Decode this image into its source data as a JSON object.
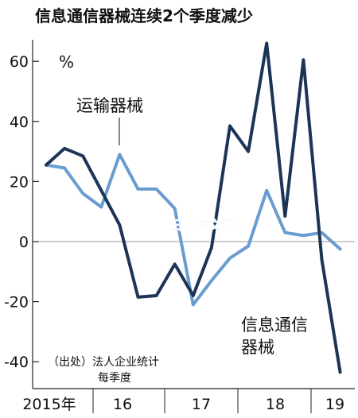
{
  "chart_data": {
    "type": "line",
    "title": "信息通信器械连续2个季度减少",
    "unit_label": "%",
    "source": [
      "（出处）法人企业统计",
      "每季度"
    ],
    "watermark": "日经中文网",
    "ylim": [
      -45,
      68
    ],
    "yticks": [
      60,
      40,
      20,
      0,
      -20,
      -40
    ],
    "xlabels": [
      "2015年",
      "16",
      "17",
      "18",
      "19"
    ],
    "grid": false,
    "colors": {
      "dark": "#1c3557",
      "light": "#6a9dcf",
      "axis": "#222222",
      "watermark": "#7ea9d3"
    },
    "series": [
      {
        "name": "运输器械",
        "label_lines": [
          "运输器械"
        ],
        "color": "#6a9dcf",
        "values": [
          25.5,
          24.5,
          16,
          11.5,
          29,
          17.5,
          17.5,
          11,
          -21,
          -13,
          -5.5,
          -1.5,
          17,
          3,
          2,
          3,
          -2.5
        ]
      },
      {
        "name": "信息通信器械",
        "label_lines": [
          "信息通信",
          "器械"
        ],
        "color": "#1c3557",
        "values": [
          25.5,
          31,
          28.5,
          17,
          5.5,
          -18.5,
          -18,
          -7.5,
          -18,
          -2,
          38.5,
          30,
          66,
          8.5,
          60.5,
          -6,
          -43.5
        ]
      }
    ]
  }
}
